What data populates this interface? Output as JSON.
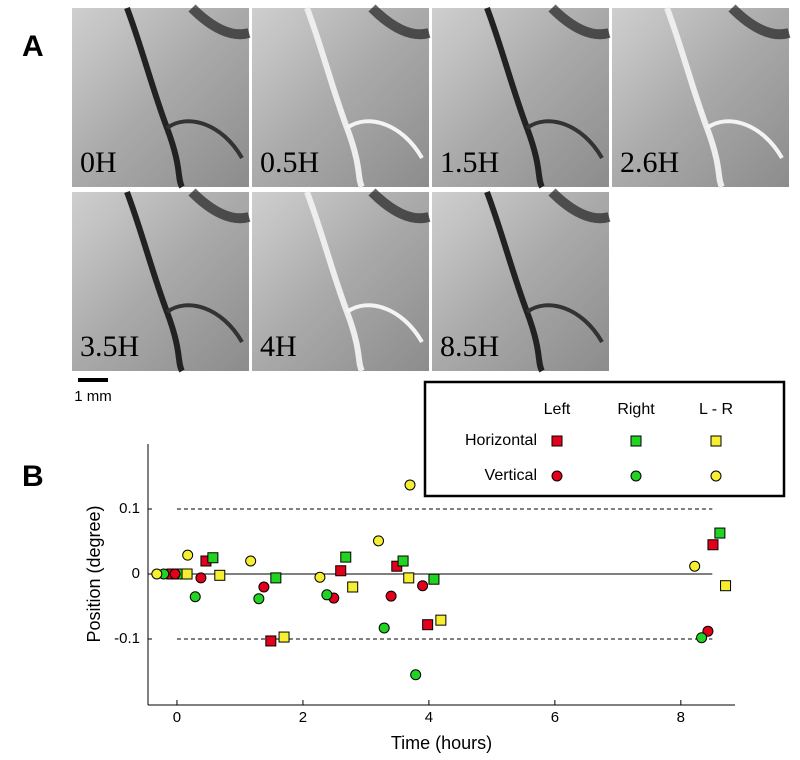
{
  "panel_a": {
    "label": "A",
    "images": [
      {
        "label": "0H"
      },
      {
        "label": "0.5H"
      },
      {
        "label": "1.5H"
      },
      {
        "label": "2.6H"
      },
      {
        "label": "3.5H"
      },
      {
        "label": "4H"
      },
      {
        "label": "8.5H"
      }
    ],
    "scale_bar": "1 mm"
  },
  "chart_data": {
    "type": "scatter",
    "panel_label": "B",
    "x_label": "Time (hours)",
    "y_label": "Position (degree)",
    "xlim": [
      -0.46,
      8.86
    ],
    "ylim": [
      -0.2,
      0.2
    ],
    "xticks": [
      0,
      2,
      4,
      6,
      8
    ],
    "yticks": [
      -0.1,
      0,
      0.1
    ],
    "hlines": [
      {
        "y": 0.1,
        "style": "dashed",
        "x_from": 0,
        "x_to": 8.5
      },
      {
        "y": 0,
        "style": "solid",
        "x_from": -0.3,
        "x_to": 8.5
      },
      {
        "y": -0.1,
        "style": "dashed",
        "x_from": 0,
        "x_to": 8.5
      }
    ],
    "legend_columns": [
      {
        "name": "Left",
        "color": "#e3001b"
      },
      {
        "name": "Right",
        "color": "#22d422"
      },
      {
        "name": "L - R",
        "color": "#f6ee30"
      }
    ],
    "legend_rows": [
      {
        "name": "Horizontal",
        "marker": "square"
      },
      {
        "name": "Vertical",
        "marker": "circle"
      }
    ],
    "points": [
      [
        {
          "x": [
            -0.08,
            0.46,
            1.49,
            2.6,
            3.49,
            3.98,
            8.51
          ],
          "y": [
            0,
            0.02,
            -0.103,
            0.005,
            0.012,
            -0.078,
            0.045
          ]
        },
        {
          "x": [
            0.06,
            0.57,
            1.57,
            2.68,
            3.59,
            4.08,
            8.62
          ],
          "y": [
            0,
            0.025,
            -0.006,
            0.026,
            0.02,
            -0.008,
            0.063
          ]
        },
        {
          "x": [
            0.16,
            0.68,
            1.7,
            2.79,
            3.68,
            4.19,
            8.71
          ],
          "y": [
            0,
            -0.002,
            -0.097,
            -0.02,
            -0.006,
            -0.071,
            -0.018
          ]
        }
      ],
      [
        {
          "x": [
            -0.03,
            0.38,
            1.38,
            2.49,
            3.4,
            3.9,
            8.43
          ],
          "y": [
            0,
            -0.006,
            -0.02,
            -0.037,
            -0.034,
            -0.018,
            -0.088
          ]
        },
        {
          "x": [
            -0.21,
            0.29,
            1.3,
            2.38,
            3.29,
            3.79,
            8.33
          ],
          "y": [
            0,
            -0.035,
            -0.038,
            -0.032,
            -0.083,
            -0.155,
            -0.098
          ]
        },
        {
          "x": [
            -0.32,
            0.17,
            1.17,
            2.27,
            3.2,
            3.7,
            8.22
          ],
          "y": [
            0,
            0.029,
            0.02,
            -0.005,
            0.051,
            0.137,
            0.012
          ]
        }
      ]
    ]
  }
}
